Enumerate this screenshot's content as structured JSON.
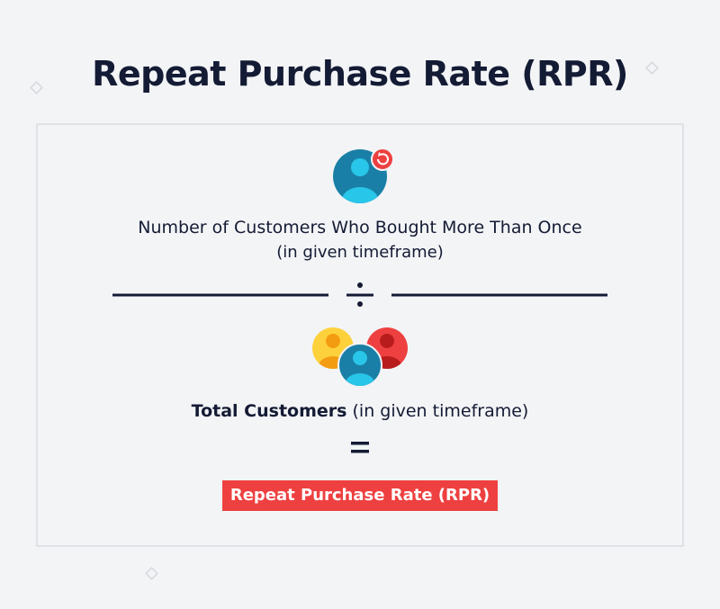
{
  "header": {
    "title": "Repeat Purchase Rate (RPR)"
  },
  "formula": {
    "numerator": {
      "label": "Number of Customers Who Bought More Than Once",
      "note": "(in given timeframe)"
    },
    "denominator": {
      "label": "Total Customers",
      "note": "(in given timeframe)"
    },
    "result": {
      "label": "Repeat Purchase Rate (RPR)"
    }
  }
}
